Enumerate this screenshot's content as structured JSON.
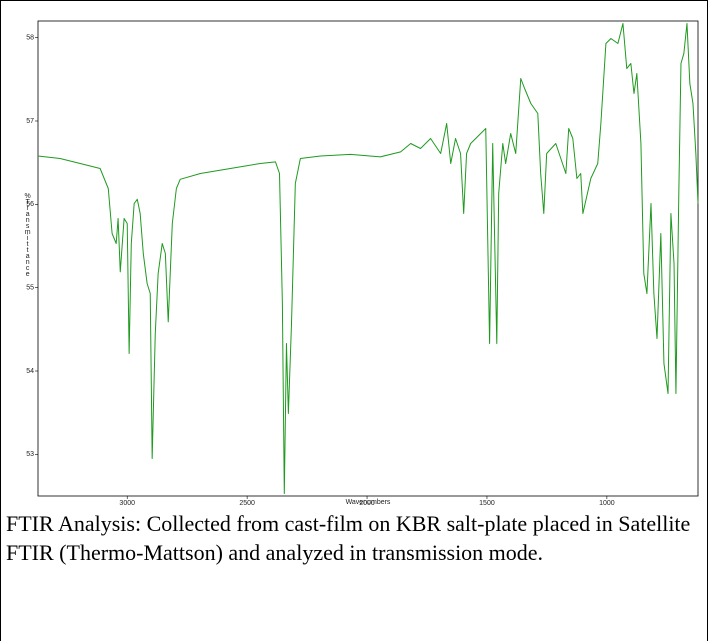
{
  "chart_data": {
    "type": "line",
    "x_label": "Wavenumbers",
    "y_label": "%Transmittance",
    "x": [
      3372,
      3280,
      3196,
      3113,
      3079,
      3063,
      3046,
      3038,
      3029,
      3013,
      3000,
      2992,
      2983,
      2971,
      2958,
      2946,
      2933,
      2917,
      2904,
      2896,
      2883,
      2871,
      2854,
      2841,
      2829,
      2812,
      2795,
      2779,
      2695,
      2570,
      2445,
      2382,
      2365,
      2353,
      2345,
      2336,
      2328,
      2315,
      2299,
      2278,
      2194,
      2069,
      1944,
      1860,
      1818,
      1777,
      1735,
      1693,
      1668,
      1651,
      1631,
      1610,
      1597,
      1585,
      1568,
      1526,
      1505,
      1489,
      1476,
      1459,
      1451,
      1434,
      1422,
      1401,
      1380,
      1359,
      1343,
      1317,
      1288,
      1276,
      1263,
      1251,
      1213,
      1192,
      1171,
      1159,
      1142,
      1125,
      1109,
      1100,
      1067,
      1038,
      1025,
      1004,
      983,
      954,
      933,
      917,
      900,
      887,
      875,
      858,
      846,
      833,
      816,
      804,
      791,
      775,
      762,
      745,
      733,
      720,
      712,
      700,
      691,
      679,
      666,
      654,
      641,
      629,
      620
    ],
    "series": [
      {
        "color": "#1f9a1f",
        "values": [
          56.58,
          56.55,
          56.49,
          56.43,
          56.19,
          55.65,
          55.53,
          55.83,
          55.19,
          55.83,
          55.77,
          54.21,
          55.53,
          56.01,
          56.06,
          55.89,
          55.41,
          55.05,
          54.93,
          52.95,
          54.45,
          55.17,
          55.53,
          55.41,
          54.59,
          55.77,
          56.19,
          56.3,
          56.37,
          56.43,
          56.49,
          56.51,
          56.37,
          54.81,
          52.53,
          54.33,
          53.49,
          54.57,
          56.25,
          56.55,
          56.58,
          56.6,
          56.57,
          56.63,
          56.73,
          56.67,
          56.79,
          56.61,
          56.97,
          56.49,
          56.79,
          56.61,
          55.89,
          56.61,
          56.73,
          56.85,
          56.91,
          54.33,
          56.73,
          54.33,
          56.13,
          56.73,
          56.49,
          56.85,
          56.61,
          57.51,
          57.39,
          57.21,
          57.09,
          56.37,
          55.89,
          56.61,
          56.73,
          56.55,
          56.37,
          56.91,
          56.79,
          56.31,
          56.37,
          55.89,
          56.31,
          56.49,
          56.97,
          57.93,
          57.99,
          57.93,
          58.17,
          57.63,
          57.69,
          57.33,
          57.57,
          56.73,
          55.17,
          54.93,
          56.01,
          54.93,
          54.39,
          55.65,
          54.09,
          53.73,
          55.89,
          55.29,
          53.73,
          56.13,
          57.69,
          57.81,
          58.17,
          57.45,
          57.21,
          56.61,
          56.01
        ]
      }
    ],
    "xlim": [
      3372,
      620
    ],
    "ylim": [
      52.5,
      58.2
    ],
    "xticks": [
      3000,
      2500,
      2000,
      1500,
      1000
    ],
    "yticks": [
      53,
      54,
      55,
      56,
      57,
      58
    ]
  },
  "caption": "FTIR Analysis: Collected from cast-film on KBR salt-plate placed in Satellite FTIR (Thermo-Mattson) and analyzed in transmission mode."
}
